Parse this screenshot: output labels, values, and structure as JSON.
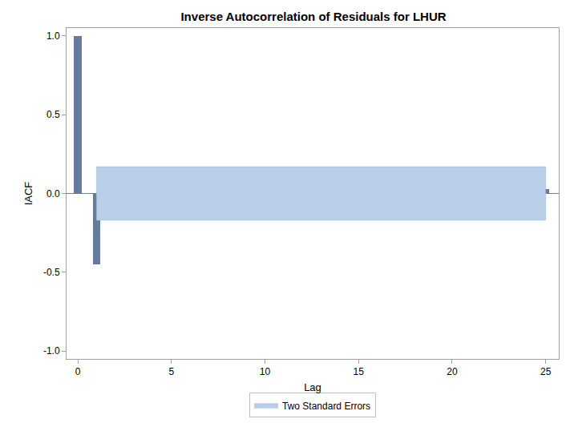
{
  "chart_data": {
    "type": "bar",
    "title": "Inverse Autocorrelation of Residuals for LHUR",
    "x_label": "Lag",
    "y_label": "IACF",
    "x": [
      0,
      1,
      2,
      3,
      4,
      5,
      6,
      7,
      8,
      9,
      10,
      11,
      12,
      13,
      14,
      15,
      16,
      17,
      18,
      19,
      20,
      21,
      22,
      23,
      24,
      25
    ],
    "values": [
      1.0,
      -0.45,
      0.01,
      -0.06,
      0.07,
      -0.14,
      0.07,
      -0.04,
      0.1,
      -0.1,
      0.15,
      -0.15,
      0.09,
      -0.06,
      0.07,
      -0.14,
      0.08,
      0.055,
      -0.06,
      0.025,
      0.003,
      0.02,
      0.0,
      -0.05,
      0.0,
      0.03
    ],
    "color": "#667a9f",
    "band": {
      "name": "Two Standard Errors",
      "x": [
        1,
        25
      ],
      "lower": -0.17,
      "upper": 0.17,
      "color": "#b9cfe8"
    },
    "xlim": [
      -0.6,
      25.7
    ],
    "xticks": [
      0,
      5,
      10,
      15,
      20,
      25
    ],
    "ylim": [
      -1.05,
      1.05
    ],
    "yticks": [
      {
        "value": -1.0,
        "label": "-1.0"
      },
      {
        "value": -0.5,
        "label": "-0.5"
      },
      {
        "value": 0,
        "label": "0.0"
      },
      {
        "value": 0.5,
        "label": "0.5"
      },
      {
        "value": 1.0,
        "label": "1.0"
      }
    ],
    "grid": false,
    "legend": "bottom"
  }
}
